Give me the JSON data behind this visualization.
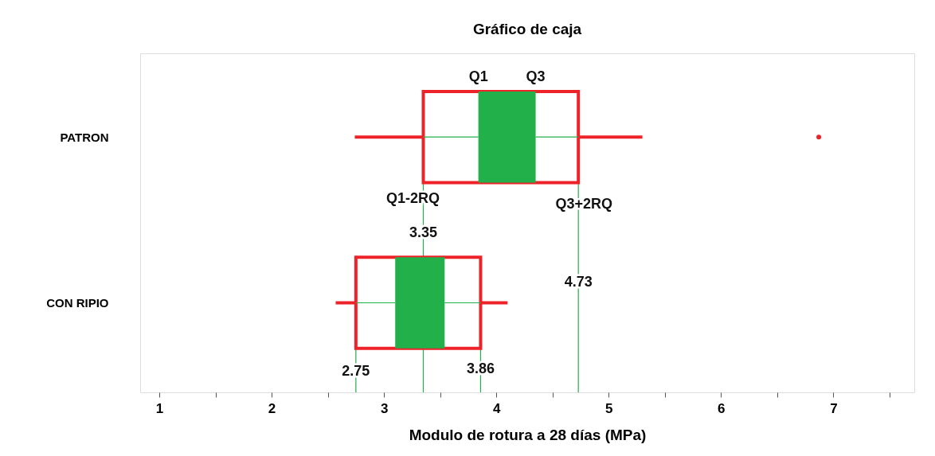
{
  "chart_data": {
    "type": "box",
    "title": "Gráfico de caja",
    "xlabel": "Modulo de rotura a 28 días (MPa)",
    "orientation": "horizontal",
    "categories": [
      "PATRON",
      "CON RIPIO"
    ],
    "series": [
      {
        "color": "#ee2229",
        "boxes": [
          {
            "low": 2.74,
            "q1": 3.35,
            "q3": 4.73,
            "high": 5.3,
            "outliers": [
              6.87
            ]
          },
          {
            "low": 2.57,
            "q1": 2.75,
            "q3": 3.86,
            "high": 4.1
          }
        ]
      },
      {
        "color": "#22b04b",
        "boxes": [
          {
            "low": 3.35,
            "q1": 3.84,
            "q3": 4.35,
            "high": 4.73
          },
          {
            "low": 2.75,
            "q1": 3.1,
            "q3": 3.54,
            "high": 3.86
          }
        ]
      }
    ],
    "xlim": [
      0.83,
      7.72
    ],
    "xticks": [
      1,
      {
        "value": 1.5,
        "label": null
      },
      2,
      {
        "value": 2.5,
        "label": null
      },
      3,
      {
        "value": 3.5,
        "label": null
      },
      4,
      {
        "value": 4.5,
        "label": null
      },
      5,
      {
        "value": 5.5,
        "label": null
      },
      6,
      {
        "value": 6.5,
        "label": null
      },
      7,
      {
        "value": 7.5,
        "label": null
      }
    ],
    "ref_lines": [
      {
        "axis": "x",
        "value": 3.35,
        "color": "#22b04b"
      },
      {
        "axis": "x",
        "value": 4.73,
        "color": "#22b04b"
      },
      {
        "axis": "x",
        "value": 2.75,
        "color": "#22b04b"
      },
      {
        "axis": "x",
        "value": 3.86,
        "color": "#22b04b"
      }
    ],
    "annotations": [
      "Q1",
      "Q3",
      "Q1-2RQ",
      "Q3+2RQ",
      "3.35",
      "4.73",
      "2.75",
      "3.86"
    ],
    "grid": false
  }
}
